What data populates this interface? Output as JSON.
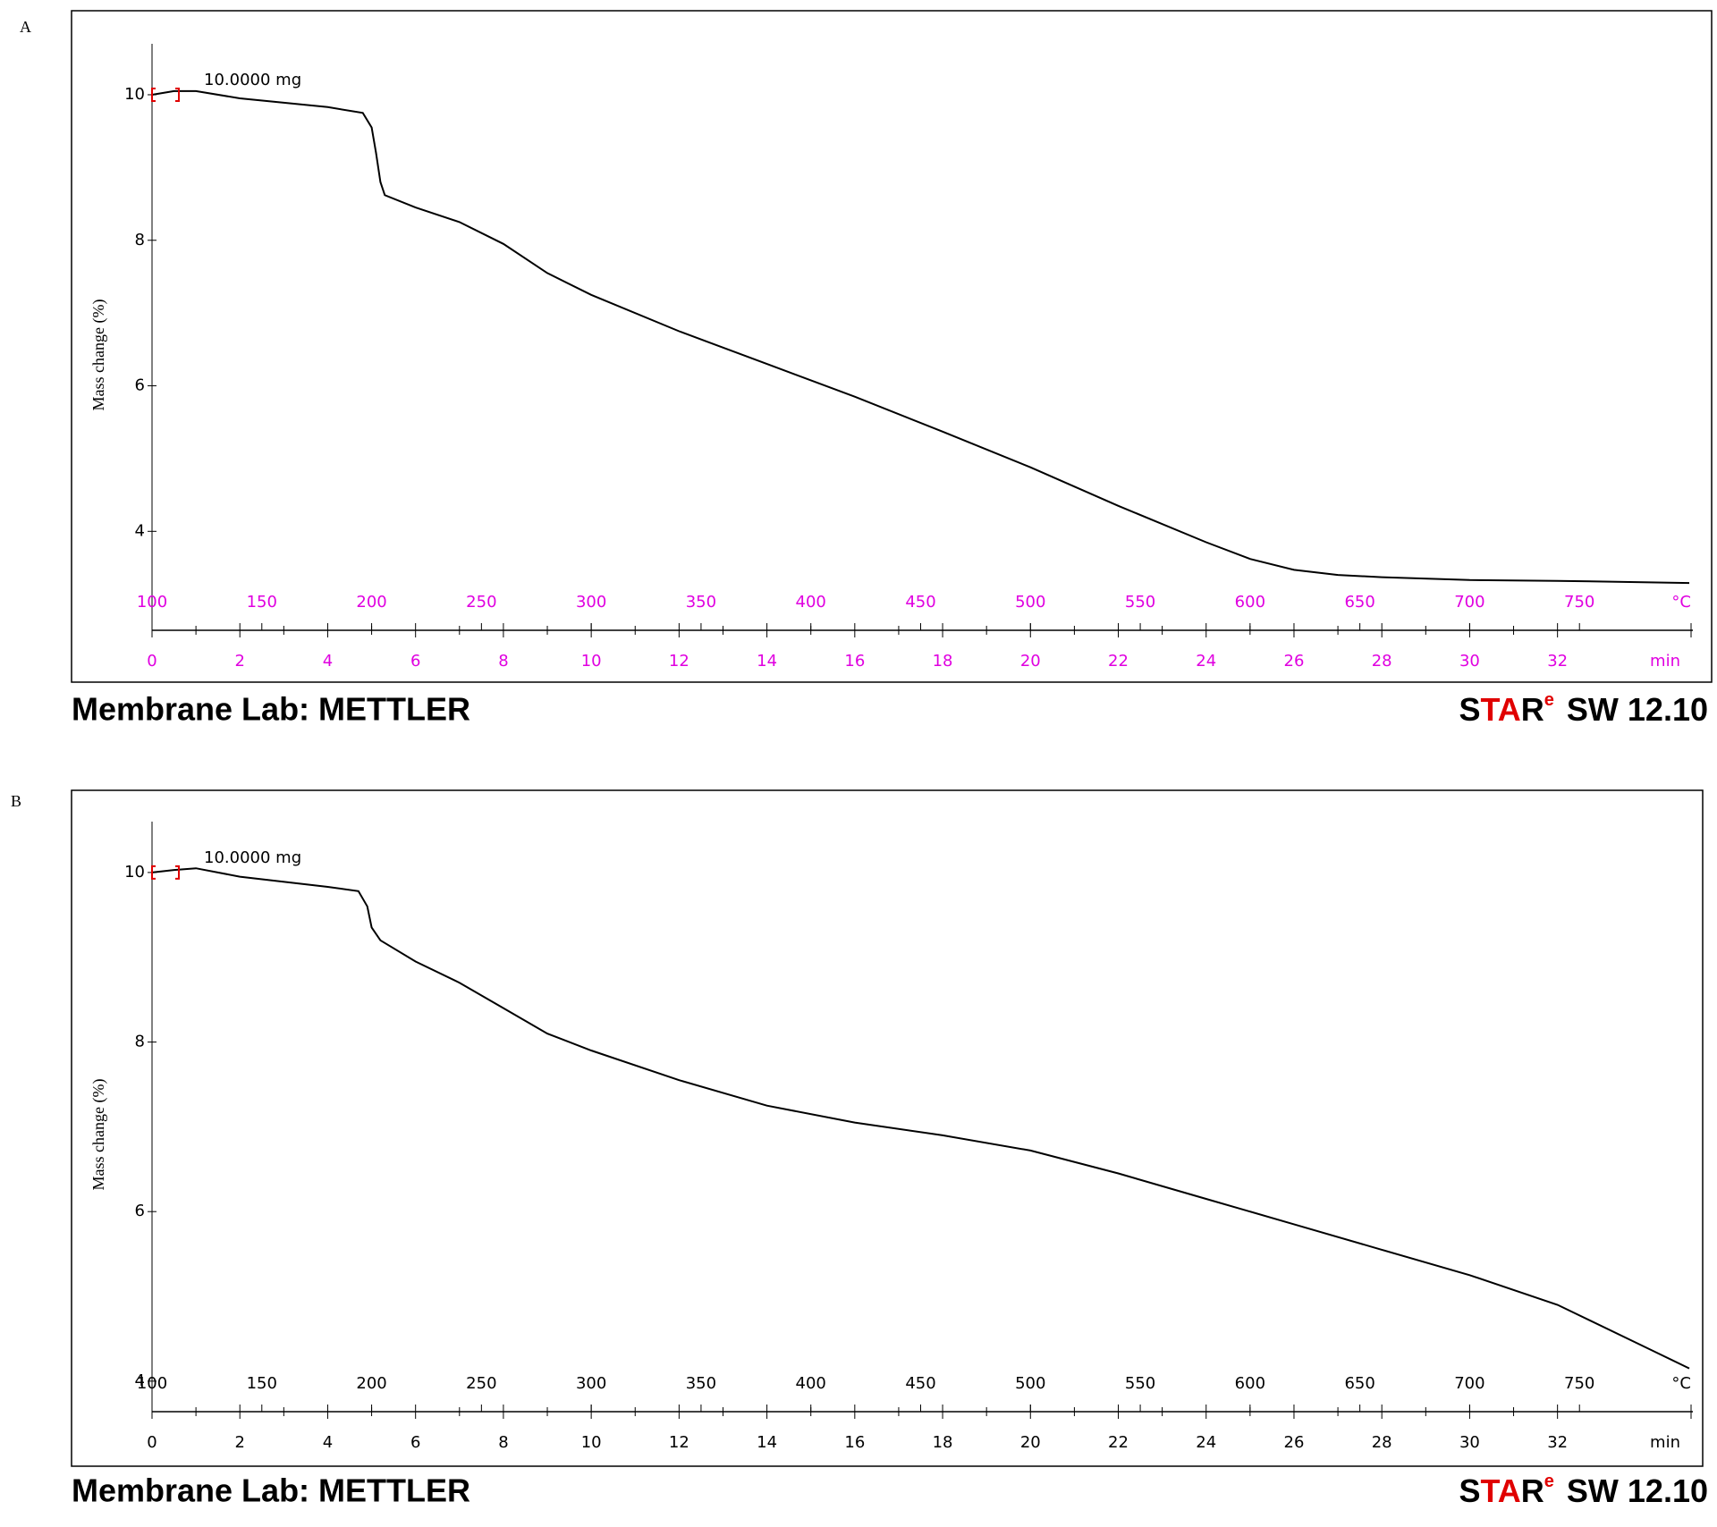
{
  "chart_data": [
    {
      "type": "line",
      "panel": "A",
      "ylabel": "Mass change (%)",
      "annotation": "10.0000 mg",
      "x": [
        0,
        0.5,
        1,
        2,
        4,
        4.8,
        5.0,
        5.1,
        5.2,
        5.3,
        6,
        7,
        8,
        9,
        10,
        12,
        14,
        16,
        18,
        20,
        22,
        24,
        25,
        26,
        27,
        28,
        30,
        32,
        35
      ],
      "values": [
        10.0,
        10.05,
        10.05,
        9.95,
        9.83,
        9.75,
        9.55,
        9.2,
        8.8,
        8.62,
        8.45,
        8.25,
        7.95,
        7.55,
        7.25,
        6.75,
        6.3,
        5.85,
        5.37,
        4.88,
        4.35,
        3.85,
        3.62,
        3.47,
        3.4,
        3.37,
        3.33,
        3.32,
        3.29
      ],
      "color": "#000000",
      "xlim": [
        0,
        35
      ],
      "xticks": [
        0,
        2,
        4,
        6,
        8,
        10,
        12,
        14,
        16,
        18,
        20,
        22,
        24,
        26,
        28,
        30,
        32
      ],
      "xunit": "min",
      "x2lim": [
        100,
        800
      ],
      "x2ticks": [
        100,
        150,
        200,
        250,
        300,
        350,
        400,
        450,
        500,
        550,
        600,
        650,
        700,
        750
      ],
      "x2unit": "°C",
      "ylim": [
        2.64,
        10.7
      ],
      "yticks": [
        4,
        6,
        8,
        10
      ],
      "axis_color": "#e000e0",
      "footer": {
        "lab": "Membrane Lab: METTLER",
        "brand": [
          "S",
          "TA",
          "R"
        ],
        "brand_sup": "e",
        "version": "SW 12.10"
      }
    },
    {
      "type": "line",
      "panel": "B",
      "ylabel": "Mass change (%)",
      "annotation": "10.0000 mg",
      "x": [
        0,
        0.5,
        1,
        2,
        4,
        4.7,
        4.9,
        5.0,
        5.2,
        6,
        7,
        8,
        9,
        10,
        12,
        14,
        16,
        18,
        20,
        22,
        24,
        26,
        28,
        30,
        32,
        34,
        35
      ],
      "values": [
        10.0,
        10.03,
        10.05,
        9.95,
        9.83,
        9.78,
        9.6,
        9.35,
        9.2,
        8.95,
        8.7,
        8.4,
        8.1,
        7.9,
        7.55,
        7.25,
        7.05,
        6.9,
        6.72,
        6.45,
        6.15,
        5.85,
        5.55,
        5.25,
        4.9,
        4.4,
        4.15
      ],
      "color": "#000000",
      "xlim": [
        0,
        35
      ],
      "xticks": [
        0,
        2,
        4,
        6,
        8,
        10,
        12,
        14,
        16,
        18,
        20,
        22,
        24,
        26,
        28,
        30,
        32
      ],
      "xunit": "min",
      "x2lim": [
        100,
        800
      ],
      "x2ticks": [
        100,
        150,
        200,
        250,
        300,
        350,
        400,
        450,
        500,
        550,
        600,
        650,
        700,
        750
      ],
      "x2unit": "°C",
      "ylim": [
        3.64,
        10.6
      ],
      "yticks": [
        4,
        6,
        8,
        10
      ],
      "axis_color": "#000000",
      "footer": {
        "lab": "Membrane Lab: METTLER",
        "brand": [
          "S",
          "TA",
          "R"
        ],
        "brand_sup": "e",
        "version": "SW 12.10"
      }
    }
  ]
}
